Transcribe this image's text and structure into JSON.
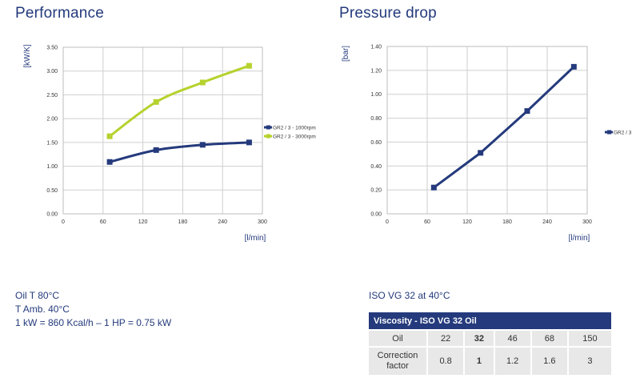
{
  "performance": {
    "title": "Performance"
  },
  "pressure_drop": {
    "title": "Pressure drop"
  },
  "notes": {
    "lines": [
      "Oil T 80°C",
      "T Amb. 40°C",
      "1 kW = 860 Kcal/h – 1 HP = 0.75 kW"
    ]
  },
  "iso_note": "ISO VG 32 at 40°C",
  "viscosity_table": {
    "title": "Viscosity - ISO VG 32 Oil",
    "rows": [
      {
        "label": "Oil",
        "values": [
          "22",
          "32",
          "46",
          "68",
          "150"
        ]
      },
      {
        "label": "Correction factor",
        "values": [
          "0.8",
          "1",
          "1.2",
          "1.6",
          "3"
        ]
      }
    ],
    "highlight_column": 1
  },
  "colors": {
    "navy": "#243a7c",
    "lime": "#b5d22d",
    "grid": "#cfcfcf",
    "axis_text": "#333333"
  },
  "chart_data": [
    {
      "type": "line",
      "title": "Performance",
      "xlabel": "[l/min]",
      "ylabel": "[kW/K]",
      "xlim": [
        0,
        300
      ],
      "ylim": [
        0,
        3.5
      ],
      "xticks": [
        "0",
        "60",
        "120",
        "180",
        "240",
        "300"
      ],
      "yticks": [
        "0.00",
        "0.50",
        "1.00",
        "1.50",
        "2.00",
        "2.50",
        "3.00",
        "3.50"
      ],
      "grid": true,
      "legend": "right",
      "series": [
        {
          "name": "GR2 / 3 - 1000rpm",
          "color": "#243a7c",
          "x": [
            70,
            140,
            210,
            280
          ],
          "y": [
            1.09,
            1.34,
            1.45,
            1.5
          ]
        },
        {
          "name": "GR2 / 3 - 3000rpm",
          "color": "#b5d22d",
          "x": [
            70,
            140,
            210,
            280
          ],
          "y": [
            1.63,
            2.35,
            2.76,
            3.11
          ]
        }
      ]
    },
    {
      "type": "line",
      "title": "Pressure drop",
      "xlabel": "[l/min]",
      "ylabel": "[bar]",
      "xlim": [
        0,
        300
      ],
      "ylim": [
        0,
        1.4
      ],
      "xticks": [
        "0",
        "60",
        "120",
        "180",
        "240",
        "300"
      ],
      "yticks": [
        "0.00",
        "0.20",
        "0.40",
        "0.60",
        "0.80",
        "1.00",
        "1.20",
        "1.40"
      ],
      "grid": true,
      "legend": "right",
      "series": [
        {
          "name": "GR2 / 3",
          "color": "#243a7c",
          "x": [
            70,
            140,
            210,
            280
          ],
          "y": [
            0.22,
            0.51,
            0.86,
            1.23
          ]
        }
      ]
    }
  ]
}
